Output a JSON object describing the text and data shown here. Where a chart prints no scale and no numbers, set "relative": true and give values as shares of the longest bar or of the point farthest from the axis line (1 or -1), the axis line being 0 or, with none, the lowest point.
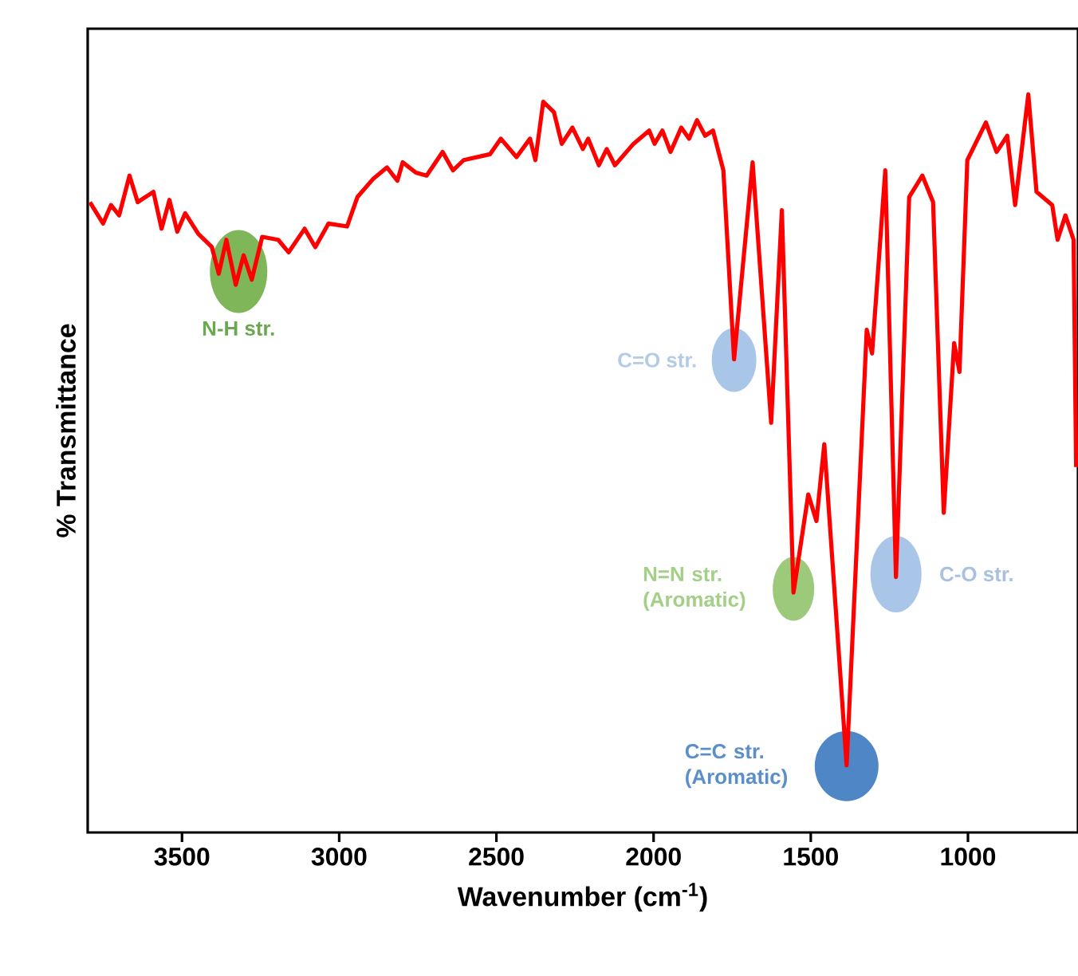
{
  "chart_data": {
    "type": "line",
    "xlabel": "Wavenumber (cm$^{-1}$)",
    "ylabel": "% Transmittance",
    "relative": true,
    "xlim": [
      3800,
      650
    ],
    "xticks": [
      3500,
      3000,
      2500,
      2000,
      1500,
      1000
    ],
    "tick_labels": "x",
    "grid": false,
    "marker": "none",
    "line_style": "solid",
    "series": [
      {
        "color": "#ff0000",
        "x": [
          3793,
          3751,
          3726,
          3700,
          3667,
          3641,
          3591,
          3565,
          3540,
          3515,
          3490,
          3448,
          3405,
          3383,
          3359,
          3329,
          3304,
          3278,
          3245,
          3194,
          3161,
          3110,
          3076,
          3034,
          2975,
          2942,
          2891,
          2848,
          2815,
          2798,
          2756,
          2722,
          2671,
          2638,
          2604,
          2520,
          2486,
          2436,
          2393,
          2376,
          2351,
          2317,
          2292,
          2258,
          2225,
          2208,
          2174,
          2149,
          2123,
          2064,
          2014,
          1997,
          1972,
          1946,
          1912,
          1887,
          1862,
          1836,
          1811,
          1778,
          1744,
          1685,
          1626,
          1592,
          1555,
          1508,
          1482,
          1457,
          1386,
          1322,
          1305,
          1263,
          1229,
          1187,
          1145,
          1111,
          1077,
          1044,
          1027,
          1002,
          943,
          909,
          875,
          850,
          808,
          782,
          732,
          715,
          690,
          664,
          656
        ],
        "values": [
          0.854,
          0.825,
          0.85,
          0.836,
          0.89,
          0.854,
          0.868,
          0.818,
          0.857,
          0.814,
          0.839,
          0.811,
          0.793,
          0.757,
          0.803,
          0.742,
          0.782,
          0.749,
          0.807,
          0.803,
          0.786,
          0.818,
          0.793,
          0.825,
          0.821,
          0.861,
          0.886,
          0.901,
          0.883,
          0.908,
          0.894,
          0.89,
          0.922,
          0.897,
          0.911,
          0.919,
          0.94,
          0.915,
          0.94,
          0.911,
          0.99,
          0.976,
          0.933,
          0.955,
          0.926,
          0.94,
          0.904,
          0.926,
          0.904,
          0.933,
          0.951,
          0.933,
          0.951,
          0.922,
          0.955,
          0.94,
          0.965,
          0.944,
          0.951,
          0.897,
          0.641,
          0.908,
          0.555,
          0.843,
          0.325,
          0.458,
          0.422,
          0.526,
          0.091,
          0.681,
          0.649,
          0.897,
          0.346,
          0.861,
          0.89,
          0.854,
          0.433,
          0.663,
          0.624,
          0.911,
          0.962,
          0.922,
          0.944,
          0.85,
          1.0,
          0.868,
          0.85,
          0.803,
          0.836,
          0.803,
          0.495
        ]
      }
    ],
    "annotations": [
      {
        "text": "N-H str.",
        "x": 3320,
        "y": 0.76
      },
      {
        "text": "C=O str.",
        "x": 1744,
        "y": 0.64
      },
      {
        "text": "N=N str. (Aromatic)",
        "x": 1555,
        "y": 0.33
      },
      {
        "text": "C=C str. (Aromatic)",
        "x": 1386,
        "y": 0.09
      },
      {
        "text": "C-O str.",
        "x": 1229,
        "y": 0.35
      }
    ]
  }
}
